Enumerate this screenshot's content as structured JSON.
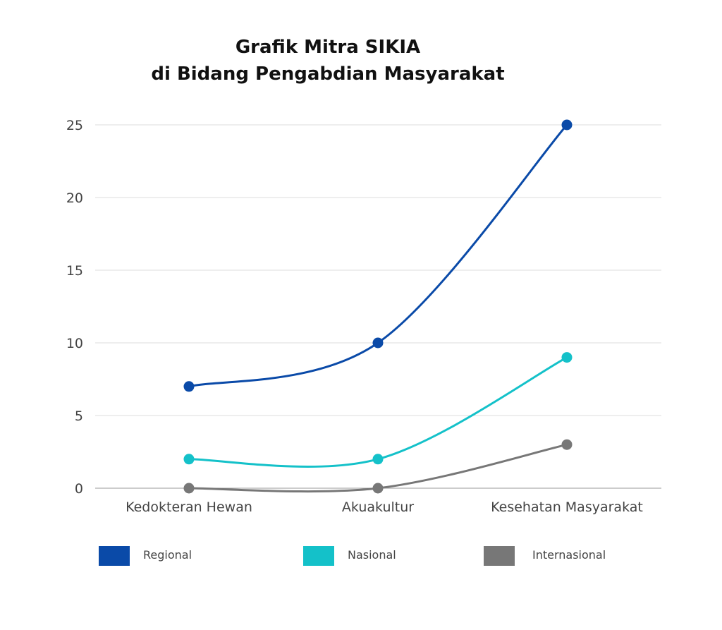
{
  "chart_data": {
    "type": "line",
    "title_lines": [
      "Grafik Mitra SIKIA",
      "di Bidang Pengabdian Masyarakat"
    ],
    "categories": [
      "Kedokteran Hewan",
      "Akuakultur",
      "Kesehatan Masyarakat"
    ],
    "yticks": [
      0,
      5,
      10,
      15,
      20,
      25
    ],
    "ylim": [
      0,
      25
    ],
    "grid": true,
    "smooth": true,
    "legend_position": "bottom",
    "series": [
      {
        "name": "Regional",
        "values": [
          7,
          10,
          25
        ],
        "color": "#0a4aa8"
      },
      {
        "name": "Nasional",
        "values": [
          2,
          2,
          9
        ],
        "color": "#14c1c9"
      },
      {
        "name": "Internasional",
        "values": [
          0,
          0,
          3
        ],
        "color": "#777777"
      }
    ]
  }
}
